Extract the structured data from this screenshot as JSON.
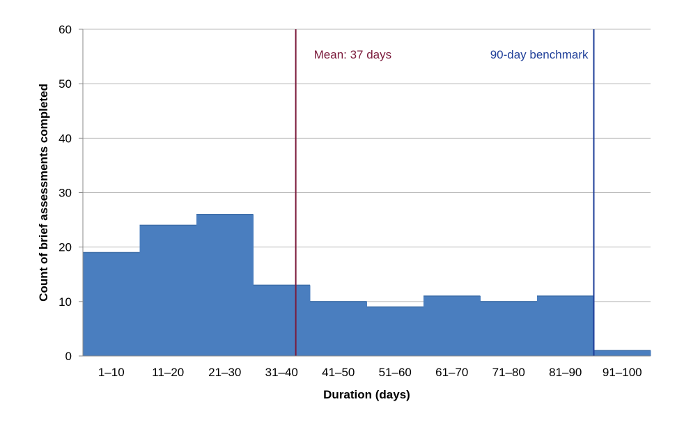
{
  "chart_data": {
    "type": "bar",
    "title": "",
    "xlabel": "Duration (days)",
    "ylabel": "Count of brief assessments completed",
    "categories": [
      "1–10",
      "11–20",
      "21–30",
      "31–40",
      "41–50",
      "51–60",
      "61–70",
      "71–80",
      "81–90",
      "91–100"
    ],
    "values": [
      19,
      24,
      26,
      13,
      10,
      9,
      11,
      10,
      11,
      1
    ],
    "ylim": [
      0,
      60
    ],
    "yticks": [
      "0",
      "10",
      "20",
      "30",
      "40",
      "50",
      "60"
    ],
    "xlim_days": [
      0,
      100
    ],
    "bar_color": "#4a7ebf",
    "grid": true,
    "reference_lines": [
      {
        "name": "mean",
        "label": "Mean: 37 days",
        "x_days": 37.5,
        "color": "#7b1a3b"
      },
      {
        "name": "benchmark",
        "label": "90-day benchmark",
        "x_days": 90,
        "color": "#1f3f99"
      }
    ]
  }
}
